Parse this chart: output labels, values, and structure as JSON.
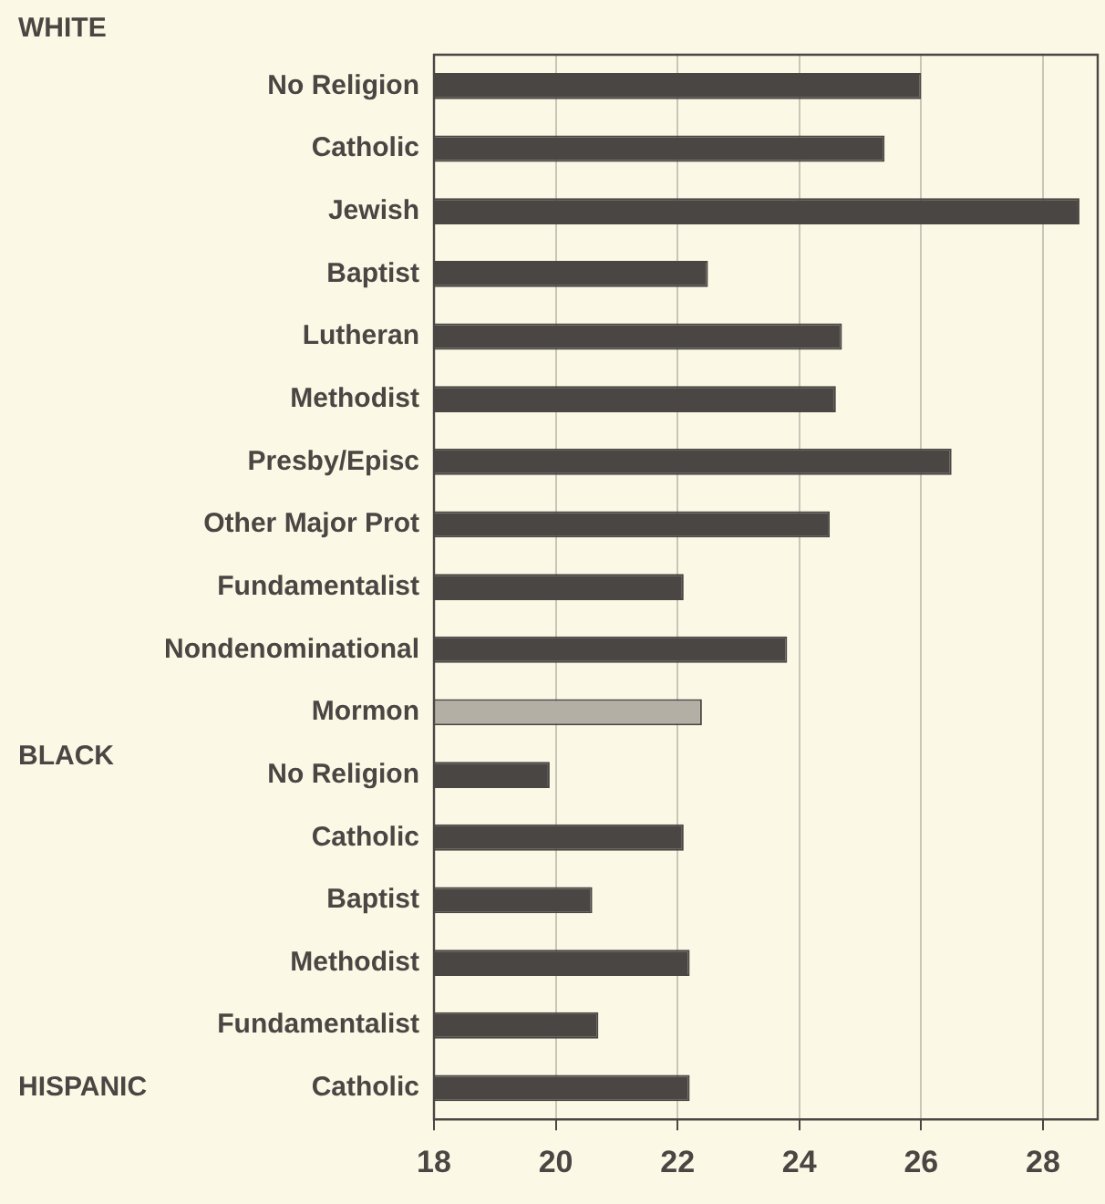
{
  "chart_data": {
    "type": "bar",
    "orientation": "horizontal",
    "categories": [
      "No Religion",
      "Catholic",
      "Jewish",
      "Baptist",
      "Lutheran",
      "Methodist",
      "Presby/Episc",
      "Other Major Prot",
      "Fundamentalist",
      "Nondenominational",
      "Mormon",
      "No Religion",
      "Catholic",
      "Baptist",
      "Methodist",
      "Fundamentalist",
      "Catholic"
    ],
    "values": [
      26.0,
      25.4,
      28.6,
      22.5,
      24.7,
      24.6,
      26.5,
      24.5,
      22.1,
      23.8,
      22.4,
      19.9,
      22.1,
      20.6,
      22.2,
      20.7,
      22.2
    ],
    "colors": [
      "#4a4643",
      "#4a4643",
      "#4a4643",
      "#4a4643",
      "#4a4643",
      "#4a4643",
      "#4a4643",
      "#4a4643",
      "#4a4643",
      "#4a4643",
      "#b3afa4",
      "#4a4643",
      "#4a4643",
      "#4a4643",
      "#4a4643",
      "#4a4643",
      "#4a4643"
    ],
    "xlim": [
      18,
      28.9
    ],
    "xticks": [
      18,
      20,
      22,
      24,
      26,
      28
    ],
    "grid": "x",
    "legend": false,
    "annotations": [
      "WHITE",
      "BLACK",
      "HISPANIC"
    ]
  }
}
